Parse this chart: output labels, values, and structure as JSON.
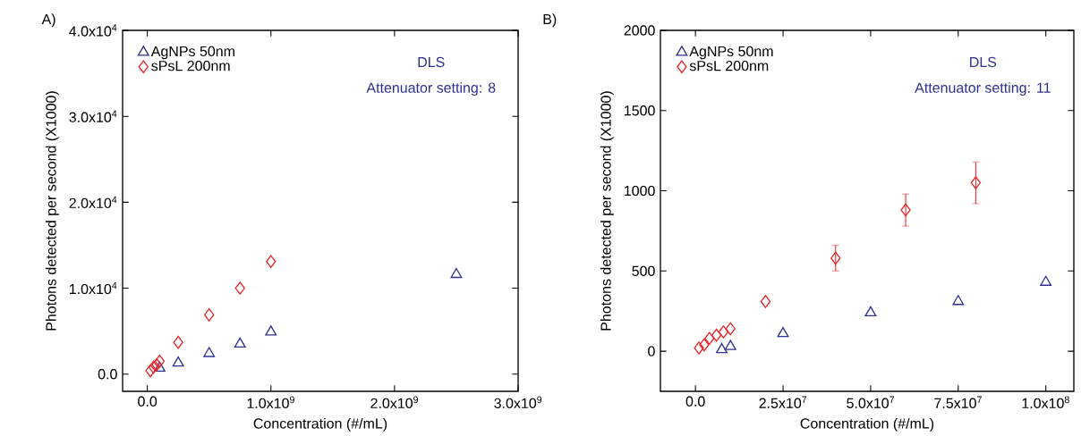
{
  "chart_data": [
    {
      "type": "scatter",
      "title": "A)",
      "xlabel": "Concentration (#/mL)",
      "ylabel": "Photons detected per second (X1000)",
      "annotations": [
        "DLS",
        "Attenuator setting: 8"
      ],
      "xlim": [
        -200000000,
        3000000000
      ],
      "ylim": [
        -2000,
        40000
      ],
      "xticks": [
        {
          "value": 0,
          "label": "0.0"
        },
        {
          "value": 1000000000,
          "label": "1.0x10$^{9}$"
        },
        {
          "value": 2000000000,
          "label": "2.0x10$^{9}$"
        },
        {
          "value": 3000000000,
          "label": "3.0x10$^{9}$"
        }
      ],
      "yticks": [
        {
          "value": 0,
          "label": "0.0"
        },
        {
          "value": 10000,
          "label": "1.0x10$^{4}$"
        },
        {
          "value": 20000,
          "label": "2.0x10$^{4}$"
        },
        {
          "value": 30000,
          "label": "3.0x10$^{4}$"
        },
        {
          "value": 40000,
          "label": "4.0x10$^{4}$"
        }
      ],
      "legend": "top left",
      "series": [
        {
          "name": "AgNPs 50nm",
          "color": "#2e3192",
          "marker": "triangle",
          "x": [
            100000000,
            250000000,
            500000000,
            750000000,
            1000000000,
            2500000000
          ],
          "values": [
            700,
            1300,
            2400,
            3500,
            4900,
            11600
          ]
        },
        {
          "name": "sPsL 200nm",
          "color": "#e8262a",
          "marker": "diamond",
          "x": [
            25000000,
            50000000,
            75000000,
            100000000,
            250000000,
            500000000,
            750000000,
            1000000000
          ],
          "values": [
            400,
            800,
            1100,
            1500,
            3700,
            6900,
            10000,
            13100
          ]
        }
      ]
    },
    {
      "type": "scatter",
      "title": "B)",
      "xlabel": "Concentration (#/mL)",
      "ylabel": "Photons detected per second (X1000)",
      "annotations": [
        "DLS",
        "Attenuator setting: 11"
      ],
      "xlim": [
        -10000000,
        108000000
      ],
      "ylim": [
        -250,
        2000
      ],
      "xticks": [
        {
          "value": 0,
          "label": "0.0"
        },
        {
          "value": 25000000,
          "label": "2.5x10$^{7}$"
        },
        {
          "value": 50000000,
          "label": "5.0x10$^{7}$"
        },
        {
          "value": 75000000,
          "label": "7.5x10$^{7}$"
        },
        {
          "value": 100000000,
          "label": "1.0x10$^{8}$"
        }
      ],
      "yticks": [
        0,
        500,
        1000,
        1500,
        2000
      ],
      "legend": "top left",
      "series": [
        {
          "name": "AgNPs 50nm",
          "color": "#2e3192",
          "marker": "triangle",
          "x": [
            7500000,
            10000000,
            25000000,
            50000000,
            75000000,
            100000000
          ],
          "values": [
            10,
            30,
            110,
            240,
            310,
            430
          ]
        },
        {
          "name": "sPsL 200nm",
          "color": "#e8262a",
          "marker": "diamond",
          "x": [
            1000000,
            2500000,
            4000000,
            6000000,
            8000000,
            10000000,
            20000000,
            40000000,
            60000000,
            80000000
          ],
          "values": [
            20,
            40,
            80,
            100,
            120,
            140,
            310,
            580,
            880,
            1050
          ],
          "errors": [
            null,
            null,
            null,
            null,
            null,
            null,
            null,
            80,
            100,
            130
          ]
        }
      ]
    }
  ]
}
